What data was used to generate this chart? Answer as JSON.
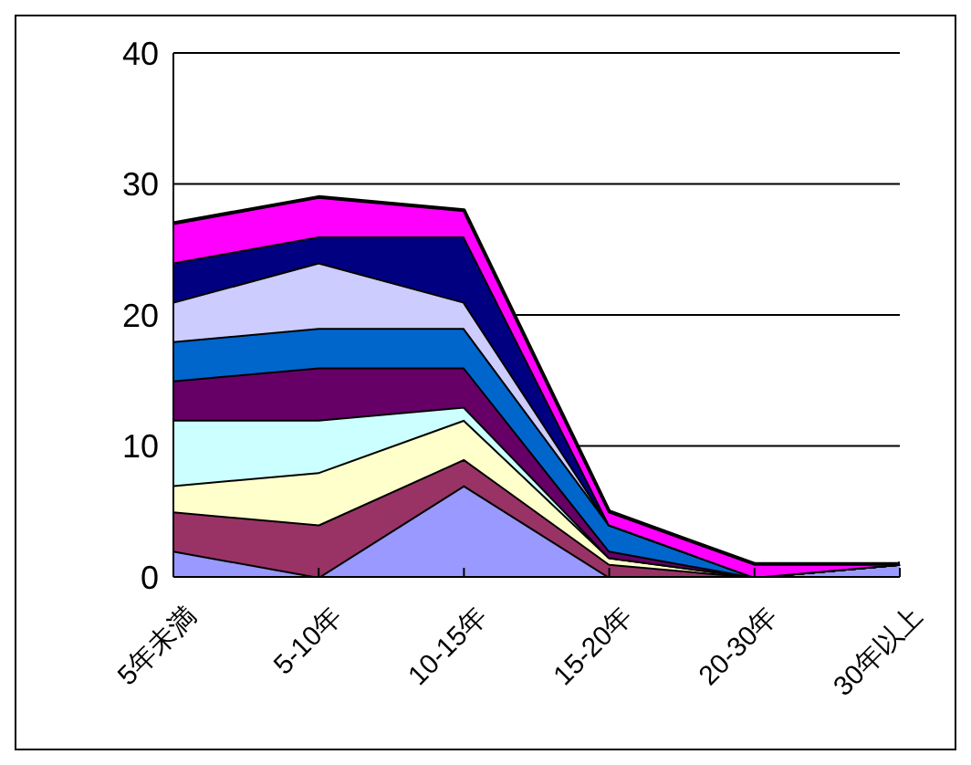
{
  "chart_data": {
    "type": "area",
    "stacked": true,
    "categories": [
      "5年未満",
      "5-10年",
      "10-15年",
      "15-20年",
      "20-30年",
      "30年以上"
    ],
    "series": [
      {
        "color": "#9999ff",
        "values": [
          2,
          0,
          7,
          0,
          0,
          1
        ]
      },
      {
        "color": "#993366",
        "values": [
          3,
          4,
          2,
          1,
          0,
          0
        ]
      },
      {
        "color": "#ffffcc",
        "values": [
          2,
          4,
          3,
          0.5,
          0,
          0
        ]
      },
      {
        "color": "#ccffff",
        "values": [
          5,
          4,
          1,
          0,
          0,
          0
        ]
      },
      {
        "color": "#660066",
        "values": [
          3,
          4,
          3,
          0.5,
          0,
          0
        ]
      },
      {
        "color": "#0066cc",
        "values": [
          3,
          3,
          3,
          2,
          0,
          0
        ]
      },
      {
        "color": "#ccccff",
        "values": [
          3,
          5,
          2,
          0,
          0,
          0
        ]
      },
      {
        "color": "#000080",
        "values": [
          3,
          2,
          5,
          0,
          0,
          0
        ]
      },
      {
        "color": "#ff00ff",
        "values": [
          3,
          3,
          2,
          1,
          1,
          0
        ]
      }
    ],
    "ylim": [
      0,
      40
    ],
    "yticks": [
      0,
      10,
      20,
      30,
      40
    ],
    "grid": "y"
  }
}
